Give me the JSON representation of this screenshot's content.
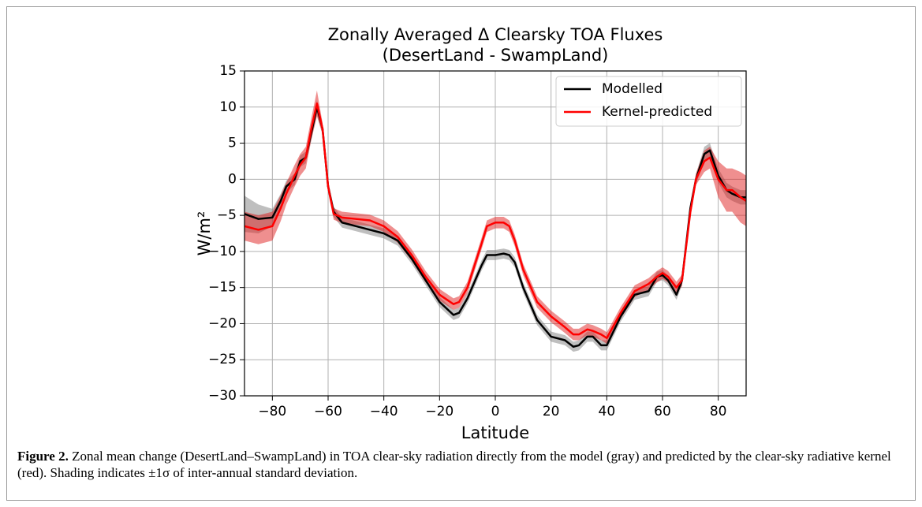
{
  "chart_data": {
    "type": "line",
    "title": "Zonally Averaged Δ Clearsky TOA Fluxes",
    "subtitle": "(DesertLand - SwampLand)",
    "x_label": "Latitude",
    "y_label": "W/m²",
    "x": [
      -90,
      -85,
      -80,
      -77,
      -75,
      -72,
      -70,
      -68,
      -66,
      -64,
      -62,
      -60,
      -58,
      -55,
      -50,
      -45,
      -40,
      -35,
      -30,
      -25,
      -20,
      -15,
      -13,
      -10,
      -5,
      -3,
      0,
      3,
      5,
      7,
      10,
      15,
      20,
      25,
      28,
      30,
      33,
      35,
      38,
      40,
      45,
      50,
      55,
      58,
      60,
      62,
      65,
      67,
      70,
      72,
      75,
      77,
      80,
      83,
      85,
      88,
      90
    ],
    "series": [
      {
        "name": "Modelled",
        "color": "#000000",
        "band_color": "#808080",
        "values": [
          -4.8,
          -5.5,
          -5.3,
          -3,
          -1,
          0,
          2.5,
          3,
          6.5,
          10,
          7,
          -1,
          -4.5,
          -6,
          -6.5,
          -7,
          -7.5,
          -8.5,
          -11,
          -14,
          -17,
          -18.8,
          -18.5,
          -16.5,
          -12,
          -10.5,
          -10.5,
          -10.3,
          -10.5,
          -11.5,
          -15,
          -19.5,
          -21.8,
          -22.3,
          -23.2,
          -23,
          -21.8,
          -21.8,
          -23,
          -23,
          -19,
          -16,
          -15.5,
          -13.5,
          -13.3,
          -14,
          -16,
          -14,
          -4,
          0,
          3.5,
          4,
          0.5,
          -1.5,
          -2,
          -2.5,
          -2.5
        ],
        "errors": [
          2.5,
          2,
          1.2,
          1,
          0.8,
          0.8,
          0.8,
          0.8,
          1,
          1,
          0.7,
          0.7,
          0.7,
          0.7,
          0.7,
          0.7,
          0.7,
          0.7,
          0.7,
          0.7,
          0.7,
          0.7,
          0.7,
          0.7,
          0.7,
          0.7,
          0.7,
          0.7,
          0.7,
          0.7,
          0.7,
          0.7,
          0.7,
          0.7,
          0.7,
          0.7,
          0.7,
          0.7,
          0.7,
          0.7,
          0.7,
          0.7,
          0.7,
          0.7,
          0.7,
          0.7,
          0.7,
          0.7,
          0.7,
          0.7,
          1,
          1,
          1,
          1,
          1,
          1,
          1
        ]
      },
      {
        "name": "Kernel-predicted",
        "color": "#ff0000",
        "band_color": "#e02020",
        "values": [
          -6.5,
          -7,
          -6.5,
          -4,
          -2,
          0.5,
          2,
          3,
          7,
          10.5,
          7,
          -1,
          -4.8,
          -5.3,
          -5.5,
          -5.7,
          -6.5,
          -8,
          -10.5,
          -13.5,
          -16,
          -17.3,
          -17,
          -15,
          -9,
          -6.5,
          -6,
          -6,
          -6.5,
          -8.5,
          -12.5,
          -17,
          -19,
          -20.5,
          -21.5,
          -21.5,
          -20.8,
          -21,
          -21.5,
          -22,
          -18.5,
          -15.5,
          -14.5,
          -13.5,
          -13,
          -13.5,
          -15,
          -14,
          -4.5,
          0,
          2.5,
          3,
          0,
          -1.5,
          -1.5,
          -2.5,
          -3
        ],
        "errors": [
          2,
          2,
          2,
          1.8,
          1.5,
          1.5,
          1.5,
          1.5,
          1.5,
          1.8,
          0.8,
          0.8,
          0.8,
          0.8,
          0.8,
          0.8,
          0.8,
          0.8,
          0.8,
          0.8,
          0.8,
          0.8,
          0.8,
          0.8,
          0.8,
          0.8,
          0.8,
          0.8,
          0.8,
          0.8,
          0.8,
          0.8,
          0.8,
          0.8,
          0.8,
          0.8,
          0.8,
          0.8,
          0.8,
          0.8,
          0.8,
          0.8,
          0.8,
          0.8,
          0.8,
          0.8,
          0.8,
          0.8,
          0.8,
          0.8,
          1.5,
          1.5,
          2.5,
          3,
          3,
          3.5,
          3.5
        ]
      }
    ],
    "xlim": [
      -90,
      90
    ],
    "xticks": [
      {
        "value": -80,
        "label": "−80"
      },
      {
        "value": -60,
        "label": "−60"
      },
      {
        "value": -40,
        "label": "−40"
      },
      {
        "value": -20,
        "label": "−20"
      },
      0,
      20,
      40,
      60,
      80
    ],
    "ylim": [
      -30,
      15
    ],
    "yticks": [
      15,
      10,
      5,
      0,
      {
        "value": -5,
        "label": "−5"
      },
      {
        "value": -10,
        "label": "−10"
      },
      {
        "value": -15,
        "label": "−15"
      },
      {
        "value": -20,
        "label": "−20"
      },
      {
        "value": -25,
        "label": "−25"
      },
      {
        "value": -30,
        "label": "−30"
      }
    ],
    "grid": true,
    "legend": "upper right"
  },
  "caption": {
    "label": "Figure 2.",
    "text": "Zonal mean change (DesertLand–SwampLand) in TOA clear-sky radiation directly from the model (gray) and predicted by the clear-sky radiative kernel (red). Shading indicates ±1σ of inter-annual standard deviation."
  }
}
